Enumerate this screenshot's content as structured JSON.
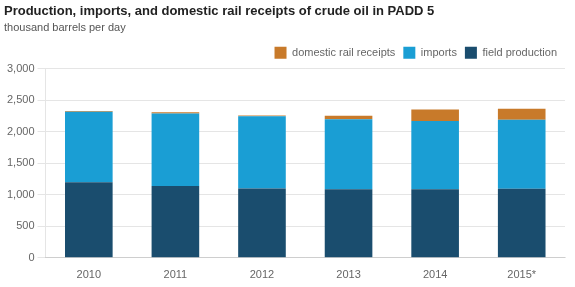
{
  "chart_data": {
    "type": "bar",
    "title": "Production, imports, and domestic rail receipts of crude oil in PADD 5",
    "subtitle": "thousand barrels per day",
    "categories": [
      "2010",
      "2011",
      "2012",
      "2013",
      "2014",
      "2015*"
    ],
    "series": [
      {
        "name": "field production",
        "color": "#1a4d6e",
        "values": [
          1200,
          1140,
          1100,
          1090,
          1090,
          1095
        ]
      },
      {
        "name": "imports",
        "color": "#1a9ed4",
        "values": [
          1120,
          1150,
          1145,
          1110,
          1080,
          1095
        ]
      },
      {
        "name": "domestic rail receipts",
        "color": "#c87a2a",
        "values": [
          10,
          20,
          15,
          55,
          185,
          175
        ]
      }
    ],
    "stacked": true,
    "ylim": [
      0,
      3000
    ],
    "yticks": [
      0,
      500,
      {
        "value": 1000,
        "label": "1,000"
      },
      {
        "value": 1500,
        "label": "1,500"
      },
      {
        "value": 2000,
        "label": "2,000"
      },
      {
        "value": 2500,
        "label": "2,500"
      },
      {
        "value": 3000,
        "label": "3,000"
      }
    ],
    "grid": true,
    "legend": "upper right"
  }
}
